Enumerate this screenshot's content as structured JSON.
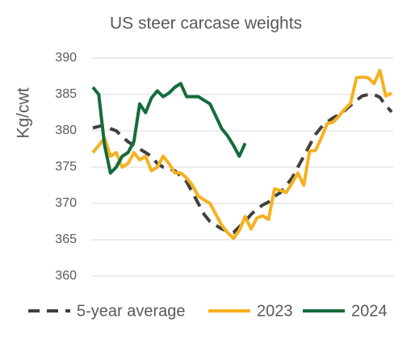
{
  "chart_data": {
    "type": "line",
    "title": "US steer carcase weights",
    "y_label": "Kg/cwt",
    "categories": [
      null,
      null,
      null,
      null,
      null,
      null,
      null,
      null,
      null,
      null,
      null,
      null,
      null,
      null,
      null,
      null,
      null,
      null,
      null,
      null,
      null,
      null,
      null,
      null,
      null,
      null,
      null,
      null,
      null,
      null,
      null,
      null,
      null,
      null,
      null,
      null,
      null,
      null,
      null,
      null,
      null,
      null,
      null,
      null,
      null,
      null,
      null,
      null,
      null,
      null,
      null,
      null
    ],
    "series": [
      {
        "name": "5-year average",
        "color": "#404040",
        "dashed": true,
        "values": [
          380.4,
          380.6,
          380.8,
          380.3,
          380,
          379.2,
          378.5,
          378,
          377.5,
          377,
          376.5,
          375.5,
          375,
          374.8,
          374.5,
          373.8,
          373,
          371.5,
          370,
          368.5,
          367.5,
          367,
          366.5,
          366.2,
          366,
          366.8,
          367.5,
          368.5,
          369.2,
          369.8,
          370.2,
          371,
          371.5,
          372.5,
          373.5,
          375,
          376.5,
          378,
          379.5,
          380.5,
          381.2,
          381.8,
          382.2,
          382.8,
          383.5,
          384.2,
          384.8,
          385,
          385,
          384.6,
          383.5,
          382.6
        ]
      },
      {
        "name": "2023",
        "color": "#f5b120",
        "dashed": false,
        "values": [
          377,
          378,
          379,
          376.5,
          377,
          375,
          375.5,
          377,
          376,
          376.5,
          374.5,
          375,
          376.5,
          375.5,
          374.2,
          374.2,
          373.5,
          372.5,
          371,
          370.5,
          370,
          368.5,
          367,
          366,
          365.2,
          366.3,
          368.2,
          366.5,
          368,
          368.3,
          367.8,
          372,
          371.8,
          371.5,
          372.8,
          374.2,
          372.5,
          377.2,
          377.3,
          379,
          381,
          381.2,
          382,
          383,
          383.8,
          387.3,
          387.4,
          387.3,
          386.5,
          388.3,
          384.8,
          385.2
        ]
      },
      {
        "name": "2024",
        "color": "#146c3c",
        "dashed": false,
        "values": [
          386,
          385,
          378,
          374.2,
          375,
          376.5,
          377,
          378.5,
          383.7,
          382.5,
          384.5,
          385.5,
          384.7,
          385.2,
          386,
          386.5,
          384.7,
          384.7,
          384.7,
          384.2,
          383.7,
          382,
          380.3,
          379.3,
          378,
          376.5,
          378.3,
          null,
          null,
          null,
          null,
          null,
          null,
          null,
          null,
          null,
          null,
          null,
          null,
          null,
          null,
          null,
          null,
          null,
          null,
          null,
          null,
          null,
          null,
          null,
          null,
          null
        ]
      }
    ],
    "ylim": [
      360,
      390
    ],
    "yticks": [
      360,
      365,
      370,
      375,
      380,
      385,
      390
    ],
    "grid": true,
    "legend": "bottom"
  }
}
